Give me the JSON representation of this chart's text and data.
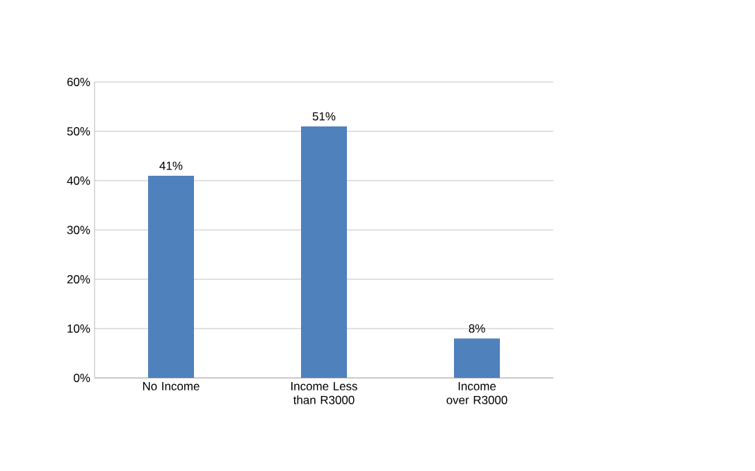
{
  "chart_data": {
    "type": "bar",
    "categories": [
      "No Income",
      "Income Less than R3000",
      "Income over R3000"
    ],
    "values": [
      41,
      51,
      8
    ],
    "value_labels": [
      "41%",
      "51%",
      "8%"
    ],
    "color": "#4f81bd",
    "ylim": [
      0,
      60
    ],
    "yticks": [
      {
        "value": 0,
        "label": "0%"
      },
      {
        "value": 10,
        "label": "10%"
      },
      {
        "value": 20,
        "label": "20%"
      },
      {
        "value": 30,
        "label": "30%"
      },
      {
        "value": 40,
        "label": "40%"
      },
      {
        "value": 50,
        "label": "50%"
      },
      {
        "value": 60,
        "label": "60%"
      }
    ],
    "grid": "y"
  }
}
